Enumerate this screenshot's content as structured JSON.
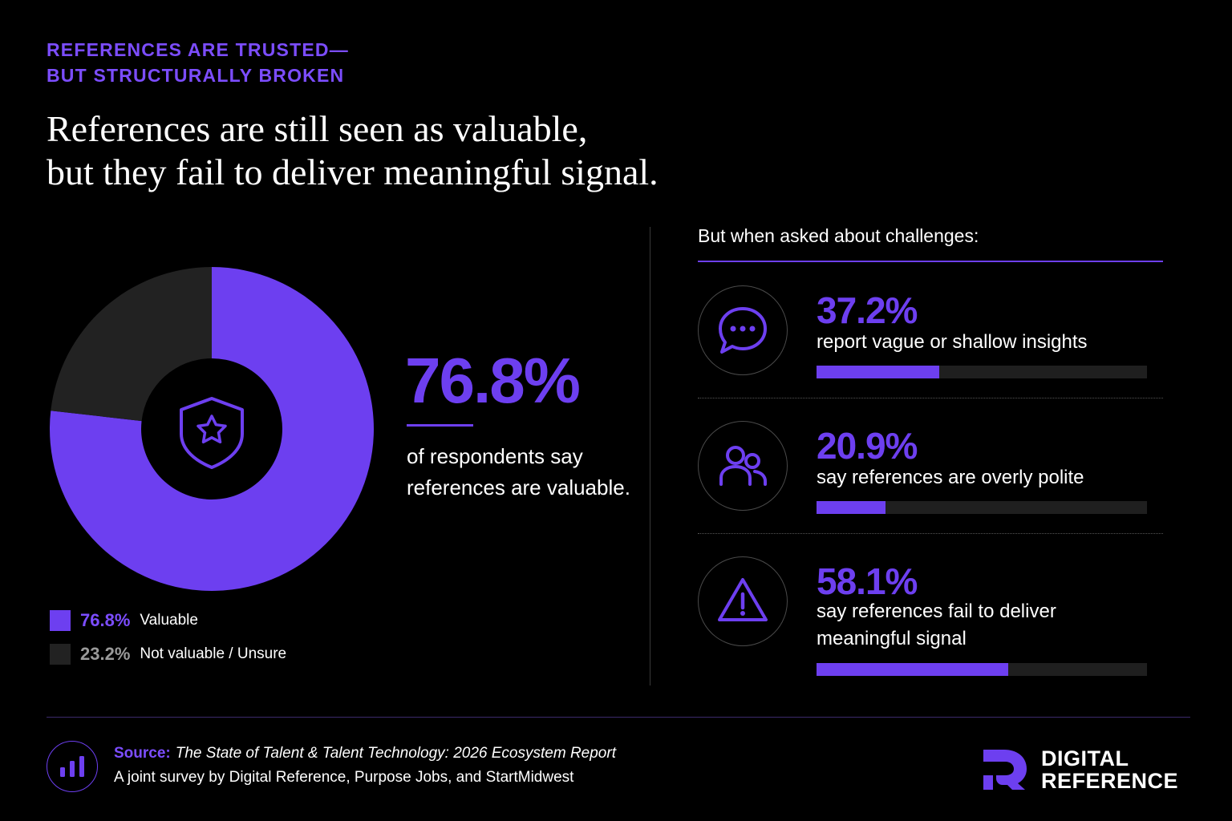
{
  "eyebrow": {
    "line1": "REFERENCES ARE TRUSTED—",
    "line2": "BUT STRUCTURALLY BROKEN"
  },
  "headline": {
    "line1": "References are still seen as valuable,",
    "line2": "but they fail to deliver meaningful signal."
  },
  "chart_data": {
    "type": "pie",
    "categories": [
      "Valuable",
      "Not valuable / Unsure"
    ],
    "values": [
      76.8,
      23.2
    ],
    "colors": [
      "#6d3ff0",
      "#222222"
    ],
    "center_icon": "shield-star-icon"
  },
  "big_stat": {
    "value": "76.8%",
    "desc": "of respondents say references are valuable."
  },
  "legend": [
    {
      "pct": "76.8%",
      "label": "Valuable",
      "color": "#6d3ff0",
      "pct_color": "#7c4dff"
    },
    {
      "pct": "23.2%",
      "label": "Not valuable / Unsure",
      "color": "#222222",
      "pct_color": "#9a9a9a"
    }
  ],
  "challenges": {
    "heading": "But when asked about challenges:",
    "items": [
      {
        "pct": "37.2%",
        "label": "report vague or shallow insights",
        "value": 37.2,
        "icon": "chat-bubble-icon"
      },
      {
        "pct": "20.9%",
        "label": "say references are overly polite",
        "value": 20.9,
        "icon": "people-icon"
      },
      {
        "pct": "58.1%",
        "label": "say references fail to deliver meaningful signal",
        "value": 58.1,
        "icon": "warning-icon"
      }
    ]
  },
  "source": {
    "label": "Source:",
    "title": "The State of Talent & Talent Technology: 2026 Ecosystem Report",
    "sub": "A joint survey by Digital Reference, Purpose Jobs, and StartMidwest"
  },
  "brand": {
    "line1": "DIGITAL",
    "line2": "REFERENCE"
  },
  "colors": {
    "accent": "#6d3ff0",
    "accent_text": "#7c4dff",
    "background": "#000000"
  }
}
